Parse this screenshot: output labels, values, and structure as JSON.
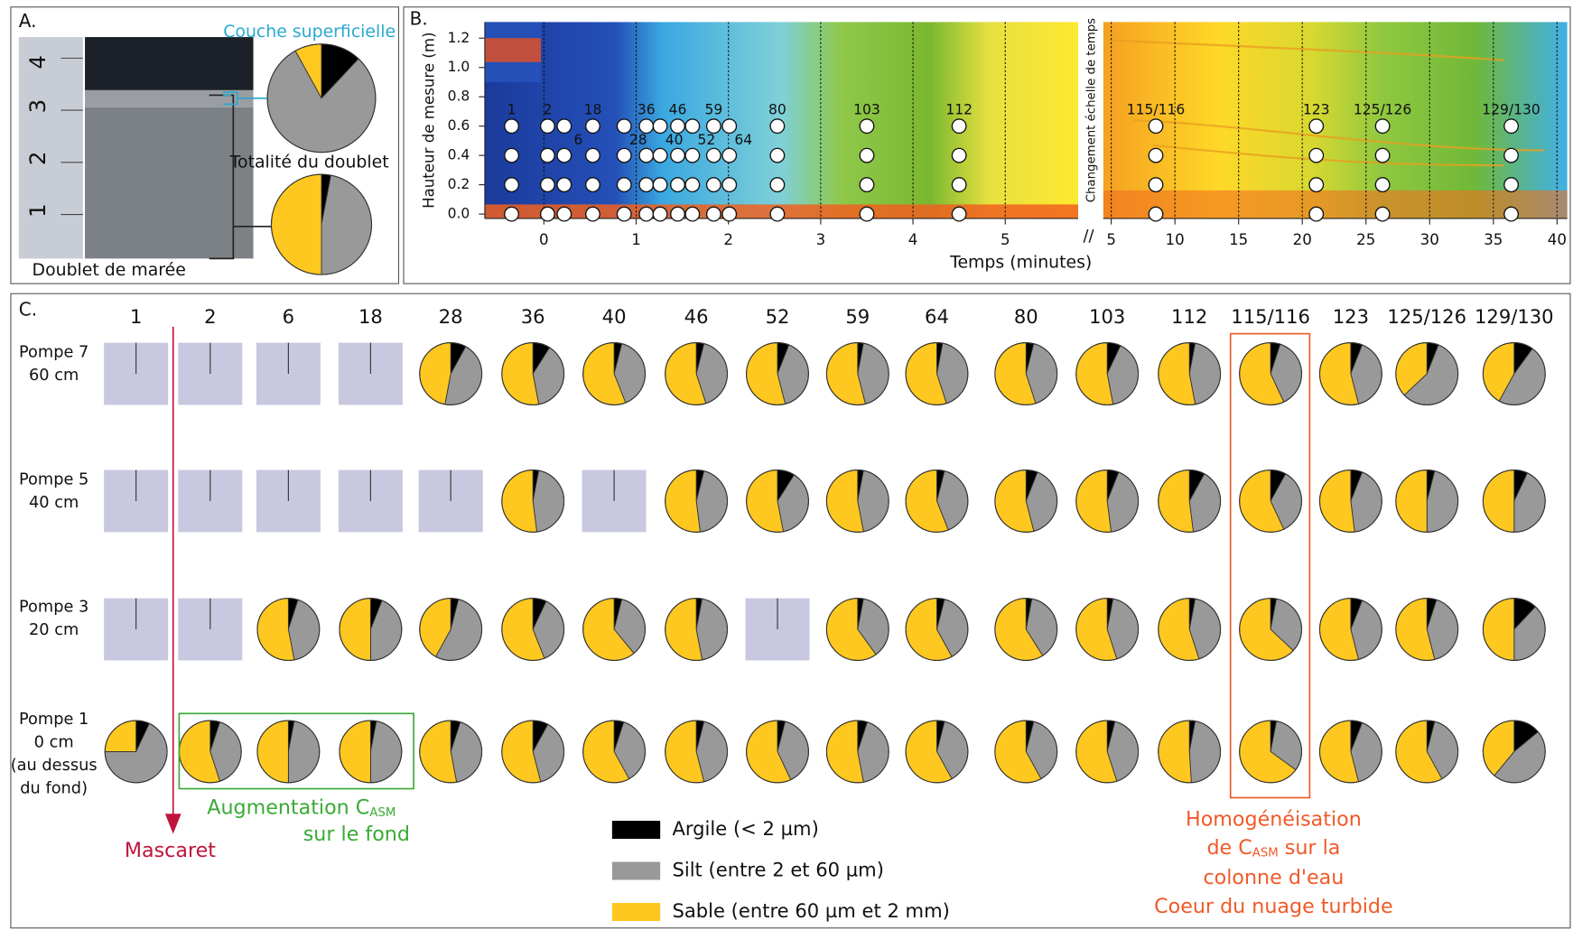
{
  "panel_a": {
    "label": "A.",
    "caption": "Doublet de marée",
    "ruler": [
      "1",
      "2",
      "3",
      "4"
    ],
    "pies": [
      {
        "label": "Couche superficielle",
        "values": [
          12,
          80,
          8
        ]
      },
      {
        "label": "Totalité du doublet",
        "values": [
          3,
          47,
          50
        ]
      }
    ]
  },
  "panel_b": {
    "label": "B.",
    "ylabel": "Hauteur de mesure (m)",
    "xlabel": "Temps (minutes)",
    "break_label": "Changement échelle de temps",
    "ylim": [
      -0.03,
      1.31
    ],
    "yticks": [
      {
        "value": 0,
        "label": "0.0"
      },
      {
        "value": 0.2,
        "label": "0.2"
      },
      {
        "value": 0.4,
        "label": "0.4"
      },
      {
        "value": 0.6,
        "label": "0.6"
      },
      {
        "value": 0.8,
        "label": "0.8"
      },
      {
        "value": 1.0,
        "label": "1.0"
      },
      {
        "value": 1.2,
        "label": "1.2"
      }
    ],
    "xlim_left": [
      -0.64,
      5.79
    ],
    "xticks_left": [
      0,
      1,
      2,
      3,
      4,
      5
    ],
    "xlim_right": [
      4.37,
      40.8
    ],
    "xticks_right": [
      5,
      10,
      15,
      20,
      25,
      30,
      35,
      40
    ],
    "sample_heights": [
      0,
      0.2,
      0.4,
      0.6
    ],
    "samples": [
      {
        "label": "1",
        "t": -0.35
      },
      {
        "label": "2",
        "t": 0.04
      },
      {
        "label": "6",
        "t": 0.22
      },
      {
        "label": "18",
        "t": 0.53
      },
      {
        "label": "28",
        "t": 0.87
      },
      {
        "label": "36",
        "t": 1.11
      },
      {
        "label": "40",
        "t": 1.26
      },
      {
        "label": "46",
        "t": 1.45
      },
      {
        "label": "52",
        "t": 1.61
      },
      {
        "label": "59",
        "t": 1.84
      },
      {
        "label": "64",
        "t": 2.01
      },
      {
        "label": "80",
        "t": 2.53
      },
      {
        "label": "103",
        "t": 3.5
      },
      {
        "label": "112",
        "t": 4.5
      },
      {
        "label": "115/116",
        "t": 8.5
      },
      {
        "label": "123",
        "t": 21.1
      },
      {
        "label": "125/126",
        "t": 26.3
      },
      {
        "label": "129/130",
        "t": 36.4
      }
    ]
  },
  "panel_c": {
    "label": "C.",
    "columns": [
      "1",
      "2",
      "6",
      "18",
      "28",
      "36",
      "40",
      "46",
      "52",
      "59",
      "64",
      "80",
      "103",
      "112",
      "115/116",
      "123",
      "125/126",
      "129/130"
    ],
    "legend": [
      {
        "label": "Argile (< 2 µm)",
        "color": "#000000"
      },
      {
        "label": "Silt (entre 2 et 60 µm)",
        "color": "#999999"
      },
      {
        "label": "Sable (entre 60 µm et 2 mm)",
        "color": "#ffc820"
      }
    ],
    "rows": [
      {
        "label": [
          "Pompe 7",
          "60 cm"
        ],
        "values": [
          null,
          null,
          null,
          null,
          [
            8,
            45,
            47
          ],
          [
            9,
            38,
            53
          ],
          [
            4,
            40,
            56
          ],
          [
            4,
            41,
            55
          ],
          [
            6,
            40,
            54
          ],
          [
            3,
            43,
            54
          ],
          [
            3,
            42,
            55
          ],
          [
            4,
            41,
            55
          ],
          [
            7,
            40,
            53
          ],
          [
            3,
            44,
            53
          ],
          [
            5,
            38,
            57
          ],
          [
            6,
            40,
            54
          ],
          [
            6,
            57,
            37
          ],
          [
            10,
            48,
            42
          ]
        ]
      },
      {
        "label": [
          "Pompe 5",
          "40 cm"
        ],
        "values": [
          null,
          null,
          null,
          null,
          null,
          [
            3,
            45,
            52
          ],
          null,
          [
            4,
            44,
            52
          ],
          [
            9,
            38,
            53
          ],
          [
            3,
            44,
            53
          ],
          [
            4,
            40,
            56
          ],
          [
            6,
            40,
            54
          ],
          [
            6,
            42,
            52
          ],
          [
            8,
            40,
            52
          ],
          [
            8,
            35,
            57
          ],
          [
            6,
            42,
            52
          ],
          [
            4,
            46,
            50
          ],
          [
            7,
            43,
            50
          ]
        ]
      },
      {
        "label": [
          "Pompe 3",
          "20 cm"
        ],
        "values": [
          null,
          null,
          [
            5,
            42,
            53
          ],
          [
            6,
            44,
            50
          ],
          [
            4,
            54,
            42
          ],
          [
            7,
            37,
            56
          ],
          [
            4,
            35,
            61
          ],
          [
            3,
            44,
            53
          ],
          null,
          [
            3,
            37,
            60
          ],
          [
            4,
            38,
            58
          ],
          [
            3,
            38,
            59
          ],
          [
            3,
            42,
            55
          ],
          [
            3,
            42,
            55
          ],
          [
            3,
            34,
            63
          ],
          [
            6,
            40,
            54
          ],
          [
            5,
            41,
            54
          ],
          [
            12,
            38,
            50
          ]
        ]
      },
      {
        "label": [
          "Pompe 1",
          "0 cm",
          "(au dessus",
          "du fond)"
        ],
        "values": [
          [
            7,
            68,
            25
          ],
          [
            5,
            40,
            55
          ],
          [
            3,
            47,
            50
          ],
          [
            3,
            47,
            50
          ],
          [
            5,
            42,
            53
          ],
          [
            8,
            38,
            54
          ],
          [
            5,
            37,
            58
          ],
          [
            4,
            42,
            54
          ],
          [
            4,
            39,
            57
          ],
          [
            5,
            42,
            53
          ],
          [
            4,
            38,
            58
          ],
          [
            4,
            38,
            58
          ],
          [
            4,
            41,
            55
          ],
          [
            3,
            46,
            51
          ],
          [
            3,
            32,
            65
          ],
          [
            6,
            40,
            54
          ],
          [
            4,
            38,
            58
          ],
          [
            14,
            47,
            39
          ]
        ]
      }
    ],
    "mascaret": "Mascaret",
    "augmentation": [
      "Augmentation C",
      "ASM",
      "sur le fond"
    ],
    "homogeneisation": [
      "Homogénéisation",
      "de C",
      "ASM",
      " sur la",
      "colonne d'eau",
      "Coeur du nuage turbide"
    ]
  }
}
